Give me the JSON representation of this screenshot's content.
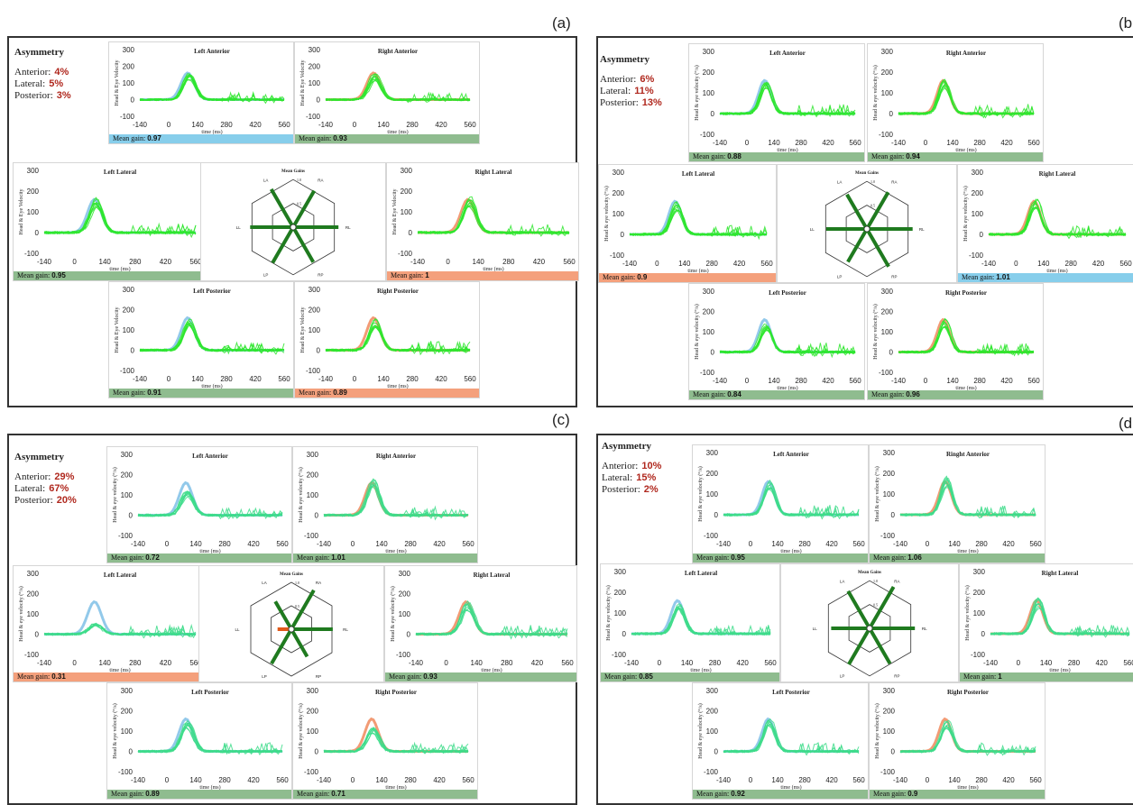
{
  "panel_letters": [
    "(a)",
    "(b",
    "(c)",
    "(d"
  ],
  "asymmetry_title": "Asymmetry",
  "mean_gain_label": "Mean gain:",
  "hex_title": "Mean Gains",
  "hex_labels": {
    "la": "LA",
    "ra": "RA",
    "ll": "LL",
    "rl": "RL",
    "lp": "LP",
    "rp": "RP",
    "r1": "1.0",
    "r05": "0.5"
  },
  "colors": {
    "green_bar": "#8fbc8f",
    "blue_bar": "#87ceeb",
    "orange_bar": "#f4a07c",
    "trace_a": "#2ee62e",
    "trace_c": "#3ddc8a",
    "left_ref": "#7fbfe6",
    "right_ref": "#f08a5d",
    "hex_spoke": "#1f7a1f",
    "hex_red": "#e05a1a"
  },
  "chart_data": [
    {
      "id": "a",
      "type": "line",
      "xticks": [
        -140,
        0,
        140,
        280,
        420,
        560
      ],
      "yticks": [
        300,
        200,
        100,
        0,
        -100
      ],
      "xlabel": "time (ms)",
      "ylabel": "Head & Eye Velocity",
      "asymmetry": {
        "anterior": "4%",
        "lateral": "5%",
        "posterior": "3%"
      },
      "plots": {
        "la": {
          "title": "Left Anterior",
          "gain": "0.97",
          "bar": "blue"
        },
        "ra": {
          "title": "Right Anterior",
          "gain": "0.93",
          "bar": "green"
        },
        "ll": {
          "title": "Left Lateral",
          "gain": "0.95",
          "bar": "green"
        },
        "rl": {
          "title": "Right Lateral",
          "gain": "1",
          "bar": "orange"
        },
        "lp": {
          "title": "Left Posterior",
          "gain": "0.91",
          "bar": "green"
        },
        "rp": {
          "title": "Right Posterior",
          "gain": "0.89",
          "bar": "orange"
        }
      },
      "spokes": {
        "la": 0.97,
        "ra": 0.93,
        "ll": 0.95,
        "rl": 1,
        "lp": 0.91,
        "rp": 0.89
      }
    },
    {
      "id": "b",
      "type": "line",
      "xticks": [
        -140,
        0,
        140,
        280,
        420,
        560
      ],
      "yticks": [
        300,
        200,
        100,
        0,
        -100
      ],
      "xlabel": "time (ms)",
      "ylabel": "Head & eye velocity (°/s)",
      "asymmetry": {
        "anterior": "6%",
        "lateral": "11%",
        "posterior": "13%"
      },
      "plots": {
        "la": {
          "title": "Left Anterior",
          "gain": "0.88",
          "bar": "green"
        },
        "ra": {
          "title": "Right Anterior",
          "gain": "0.94",
          "bar": "green"
        },
        "ll": {
          "title": "Left Lateral",
          "gain": "0.9",
          "bar": "orange"
        },
        "rl": {
          "title": "Right Lateral",
          "gain": "1.01",
          "bar": "blue"
        },
        "lp": {
          "title": "Left Posterior",
          "gain": "0.84",
          "bar": "green"
        },
        "rp": {
          "title": "Right Posterior",
          "gain": "0.96",
          "bar": "green"
        }
      },
      "spokes": {
        "la": 0.88,
        "ra": 0.94,
        "ll": 0.9,
        "rl": 1.01,
        "lp": 0.84,
        "rp": 0.96
      }
    },
    {
      "id": "c",
      "type": "line",
      "xticks": [
        -140,
        0,
        140,
        280,
        420,
        560
      ],
      "yticks": [
        300,
        200,
        100,
        0,
        -100
      ],
      "xlabel": "time (ms)",
      "ylabel": "Head & eye velocity (°/s)",
      "asymmetry": {
        "anterior": "29%",
        "lateral": "67%",
        "posterior": "20%"
      },
      "plots": {
        "la": {
          "title": "Left Anterior",
          "gain": "0.72",
          "bar": "green"
        },
        "ra": {
          "title": "Right Anterior",
          "gain": "1.01",
          "bar": "green"
        },
        "ll": {
          "title": "Left Lateral",
          "gain": "0.31",
          "bar": "orange"
        },
        "rl": {
          "title": "Right Lateral",
          "gain": "0.93",
          "bar": "green"
        },
        "lp": {
          "title": "Left Posterior",
          "gain": "0.89",
          "bar": "green"
        },
        "rp": {
          "title": "Right Posterior",
          "gain": "0.71",
          "bar": "green"
        }
      },
      "spokes": {
        "la": 0.72,
        "ra": 1.01,
        "ll": 0.31,
        "rl": 0.93,
        "lp": 0.89,
        "rp": 0.71
      }
    },
    {
      "id": "d",
      "type": "line",
      "xticks": [
        -140,
        0,
        140,
        280,
        420,
        560
      ],
      "yticks": [
        300,
        200,
        100,
        0,
        -100
      ],
      "xlabel": "time (ms)",
      "ylabel": "Head & eye velocity (°/s)",
      "asymmetry": {
        "anterior": "10%",
        "lateral": "15%",
        "posterior": "2%"
      },
      "plots": {
        "la": {
          "title": "Left Anterior",
          "gain": "0.95",
          "bar": "green"
        },
        "ra": {
          "title": "Ringht Anterior",
          "gain": "1.06",
          "bar": "green"
        },
        "ll": {
          "title": "Left Lateral",
          "gain": "0.85",
          "bar": "green"
        },
        "rl": {
          "title": "Right Lateral",
          "gain": "1",
          "bar": "green"
        },
        "lp": {
          "title": "Left Posterior",
          "gain": "0.92",
          "bar": "green"
        },
        "rp": {
          "title": "Right Posterior",
          "gain": "0.9",
          "bar": "green"
        }
      },
      "spokes": {
        "la": 0.95,
        "ra": 1.06,
        "ll": 0.85,
        "rl": 1,
        "lp": 0.92,
        "rp": 0.9
      }
    }
  ]
}
